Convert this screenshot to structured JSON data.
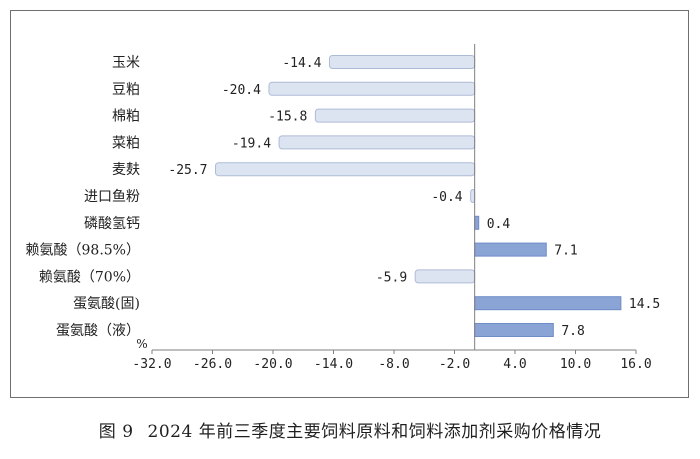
{
  "figure": {
    "number_label": "图 9",
    "caption": "2024 年前三季度主要饲料原料和饲料添加剂采购价格情况"
  },
  "colors": {
    "negative_bar_fill": "#dde4f1",
    "negative_bar_stroke": "#aebbd6",
    "positive_bar_fill": "#8aa4d6",
    "positive_bar_stroke": "#6f8cc6",
    "axis": "#7f7f7f",
    "text": "#222222"
  },
  "chart_data": {
    "type": "bar",
    "orientation": "horizontal",
    "categories": [
      "玉米",
      "豆粕",
      "棉粕",
      "菜粕",
      "麦麸",
      "进口鱼粉",
      "磷酸氢钙",
      "赖氨酸（98.5%）",
      "赖氨酸（70%）",
      "蛋氨酸(固)",
      "蛋氨酸（液）"
    ],
    "values": [
      -14.4,
      -20.4,
      -15.8,
      -19.4,
      -25.7,
      -0.4,
      0.4,
      7.1,
      -5.9,
      14.5,
      7.8
    ],
    "value_labels": [
      "-14.4",
      "-20.4",
      "-15.8",
      "-19.4",
      "-25.7",
      "-0.4",
      "0.4",
      "7.1",
      "-5.9",
      "14.5",
      "7.8"
    ],
    "xlim": [
      -32.0,
      16.0
    ],
    "x_ticks": [
      -32.0,
      -26.0,
      -20.0,
      -14.0,
      -8.0,
      -2.0,
      4.0,
      10.0,
      16.0
    ],
    "x_tick_labels": [
      "-32.0",
      "-26.0",
      "-20.0",
      "-14.0",
      "-8.0",
      "-2.0",
      "4.0",
      "10.0",
      "16.0"
    ],
    "xlabel": "",
    "ylabel": "",
    "unit": "%",
    "grid": false,
    "legend": "none"
  }
}
